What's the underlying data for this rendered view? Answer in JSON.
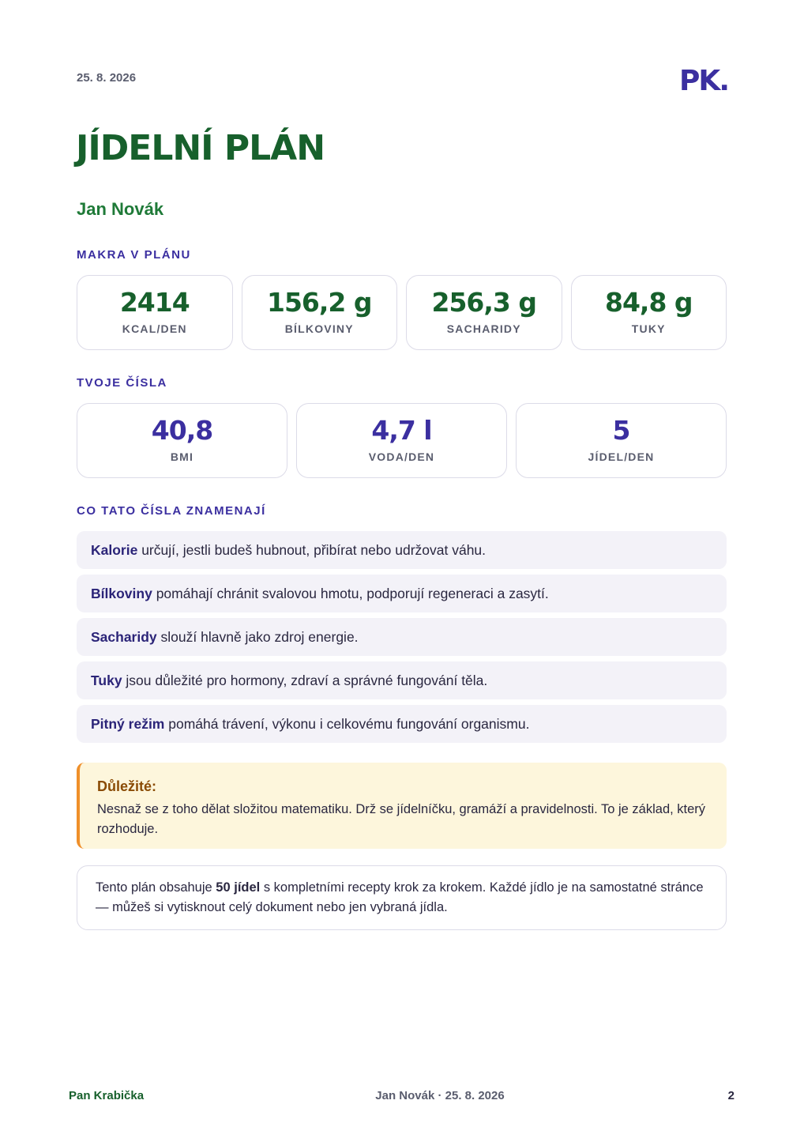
{
  "header": {
    "date": "25. 8. 2026",
    "logo": "PK."
  },
  "title": "JÍDELNÍ PLÁN",
  "name": "Jan Novák",
  "macros": {
    "heading": "MAKRA V PLÁNU",
    "items": [
      {
        "value": "2414",
        "label": "KCAL/DEN"
      },
      {
        "value": "156,2 g",
        "label": "BÍLKOVINY"
      },
      {
        "value": "256,3 g",
        "label": "SACHARIDY"
      },
      {
        "value": "84,8 g",
        "label": "TUKY"
      }
    ]
  },
  "numbers": {
    "heading": "TVOJE ČÍSLA",
    "items": [
      {
        "value": "40,8",
        "label": "BMI"
      },
      {
        "value": "4,7 l",
        "label": "VODA/DEN"
      },
      {
        "value": "5",
        "label": "JÍDEL/DEN"
      }
    ]
  },
  "meaning": {
    "heading": "CO TATO ČÍSLA ZNAMENAJÍ",
    "items": [
      {
        "term": "Kalorie",
        "text": "určují, jestli budeš hubnout, přibírat nebo udržovat váhu."
      },
      {
        "term": "Bílkoviny",
        "text": "pomáhají chránit svalovou hmotu, podporují regeneraci a zasytí."
      },
      {
        "term": "Sacharidy",
        "text": "slouží hlavně jako zdroj energie."
      },
      {
        "term": "Tuky",
        "text": "jsou důležité pro hormony, zdraví a správné fungování těla."
      },
      {
        "term": "Pitný režim",
        "text": "pomáhá trávení, výkonu i celkovému fungování organismu."
      }
    ]
  },
  "important": {
    "title": "Důležité:",
    "text": "Nesnaž se z toho dělat složitou matematiku. Drž se jídelníčku, gramáží a pravidelnosti. To je základ, který rozhoduje."
  },
  "info": {
    "before": "Tento plán obsahuje",
    "bold": "50 jídel",
    "after": "s kompletními recepty krok za krokem. Každé jídlo je na samostatné stránce — můžeš si vytisknout celý dokument nebo jen vybraná jídla."
  },
  "footer": {
    "brand": "Pan Krabička",
    "center": "Jan Novák · 25. 8. 2026",
    "page": "2"
  }
}
